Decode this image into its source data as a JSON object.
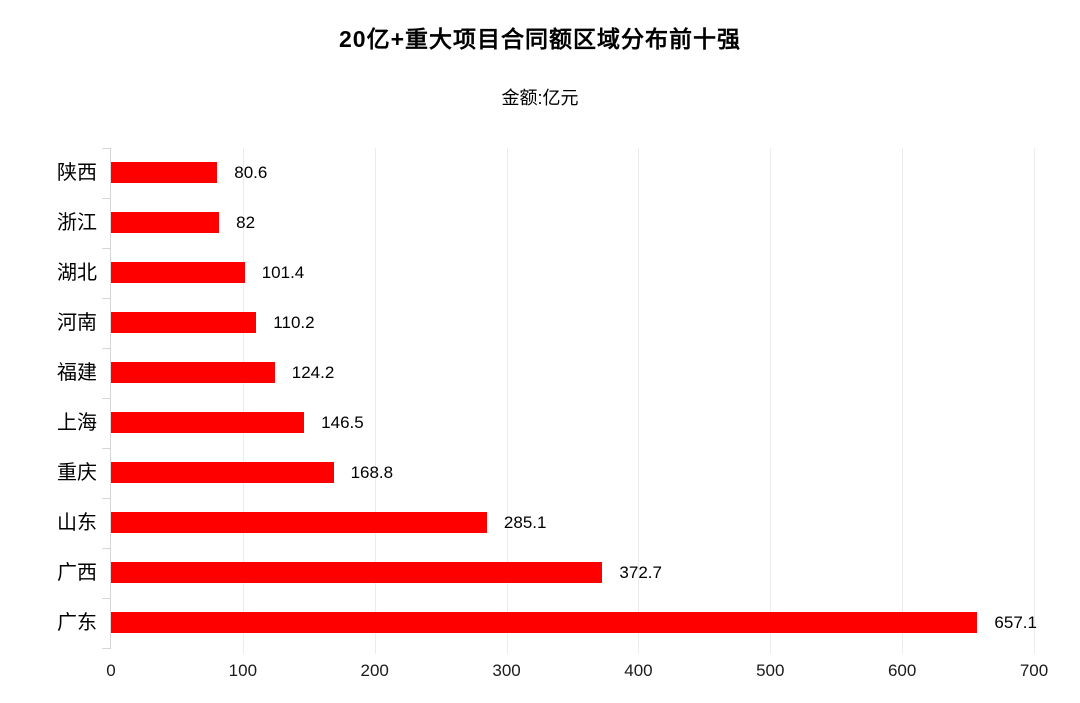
{
  "chart_data": {
    "type": "bar",
    "orientation": "horizontal",
    "title": "20亿+重大项目合同额区域分布前十强",
    "subtitle": "金额:亿元",
    "categories": [
      "陕西",
      "浙江",
      "湖北",
      "河南",
      "福建",
      "上海",
      "重庆",
      "山东",
      "广西",
      "广东"
    ],
    "values": [
      80.6,
      82,
      101.4,
      110.2,
      124.2,
      146.5,
      168.8,
      285.1,
      372.7,
      657.1
    ],
    "value_labels": [
      "80.6",
      "82",
      "101.4",
      "110.2",
      "124.2",
      "146.5",
      "168.8",
      "285.1",
      "372.7",
      "657.1"
    ],
    "xlabel": "",
    "ylabel": "",
    "xlim": [
      0,
      700
    ],
    "x_ticks": [
      "0",
      "100",
      "200",
      "300",
      "400",
      "500",
      "600",
      "700"
    ],
    "grid": true,
    "legend": "none",
    "bar_color": "#fe0000",
    "gridline_color": "#ececec",
    "axis_line_color": "#d6d6d6",
    "text_color": "#000000"
  }
}
